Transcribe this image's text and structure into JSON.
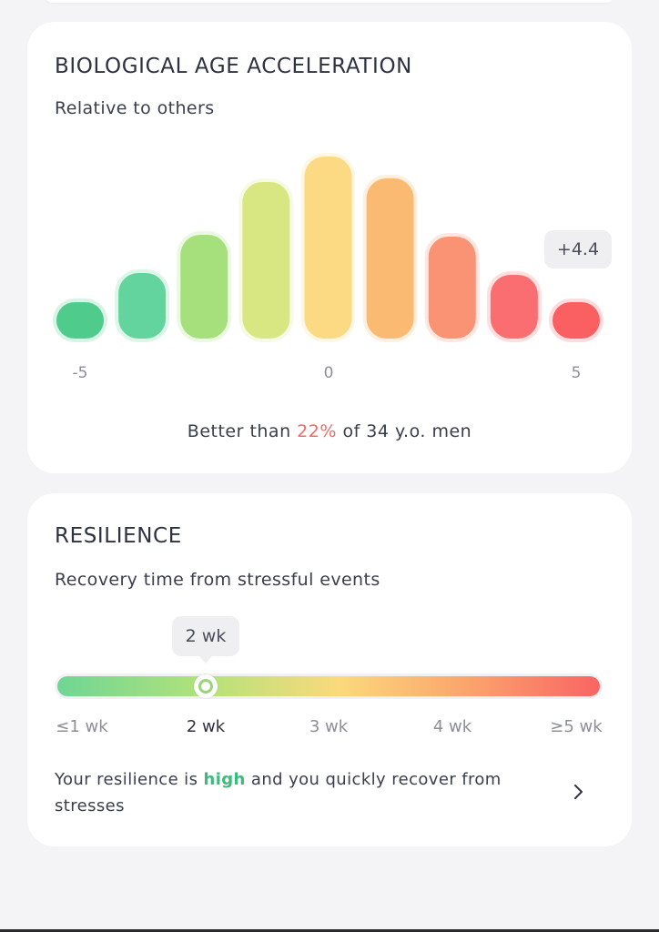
{
  "bio_card": {
    "title": "BIOLOGICAL AGE ACCELERATION",
    "subtitle": "Relative to others",
    "value_label": "+4.4",
    "summary_prefix": "Better than ",
    "summary_highlight": "22%",
    "summary_suffix": " of 34 y.o. men"
  },
  "chart_data": {
    "type": "bar",
    "title": "BIOLOGICAL AGE ACCELERATION",
    "subtitle": "Relative to others",
    "x_ticks": [
      "-5",
      "0",
      "5"
    ],
    "categories": [
      "-5",
      "-3.75",
      "-2.5",
      "-1.25",
      "0",
      "1.25",
      "2.5",
      "3.75",
      "5"
    ],
    "values": [
      0.18,
      0.36,
      0.57,
      0.86,
      1.0,
      0.88,
      0.56,
      0.35,
      0.2
    ],
    "colors": [
      "#4fcb8b",
      "#63d49d",
      "#a5e07d",
      "#d9e782",
      "#fcd983",
      "#fbba72",
      "#fa9274",
      "#fa6e72",
      "#fa6062"
    ],
    "highlighted_value": "+4.4",
    "ylim": [
      0,
      1
    ],
    "grid": false
  },
  "resilience_card": {
    "title": "RESILIENCE",
    "subtitle": "Recovery time from stressful events",
    "current_label": "2 wk",
    "current_level": 0.275,
    "scale_labels": [
      "≤1 wk",
      "2 wk",
      "3 wk",
      "4 wk",
      "≥5 wk"
    ],
    "desc_prefix": "Your resilience is ",
    "desc_highlight": "high",
    "desc_suffix": " and you quickly recover from stresses",
    "colors": {
      "good": "#6ed694",
      "mid": "#fbd97c",
      "bad": "#fa6464"
    }
  }
}
